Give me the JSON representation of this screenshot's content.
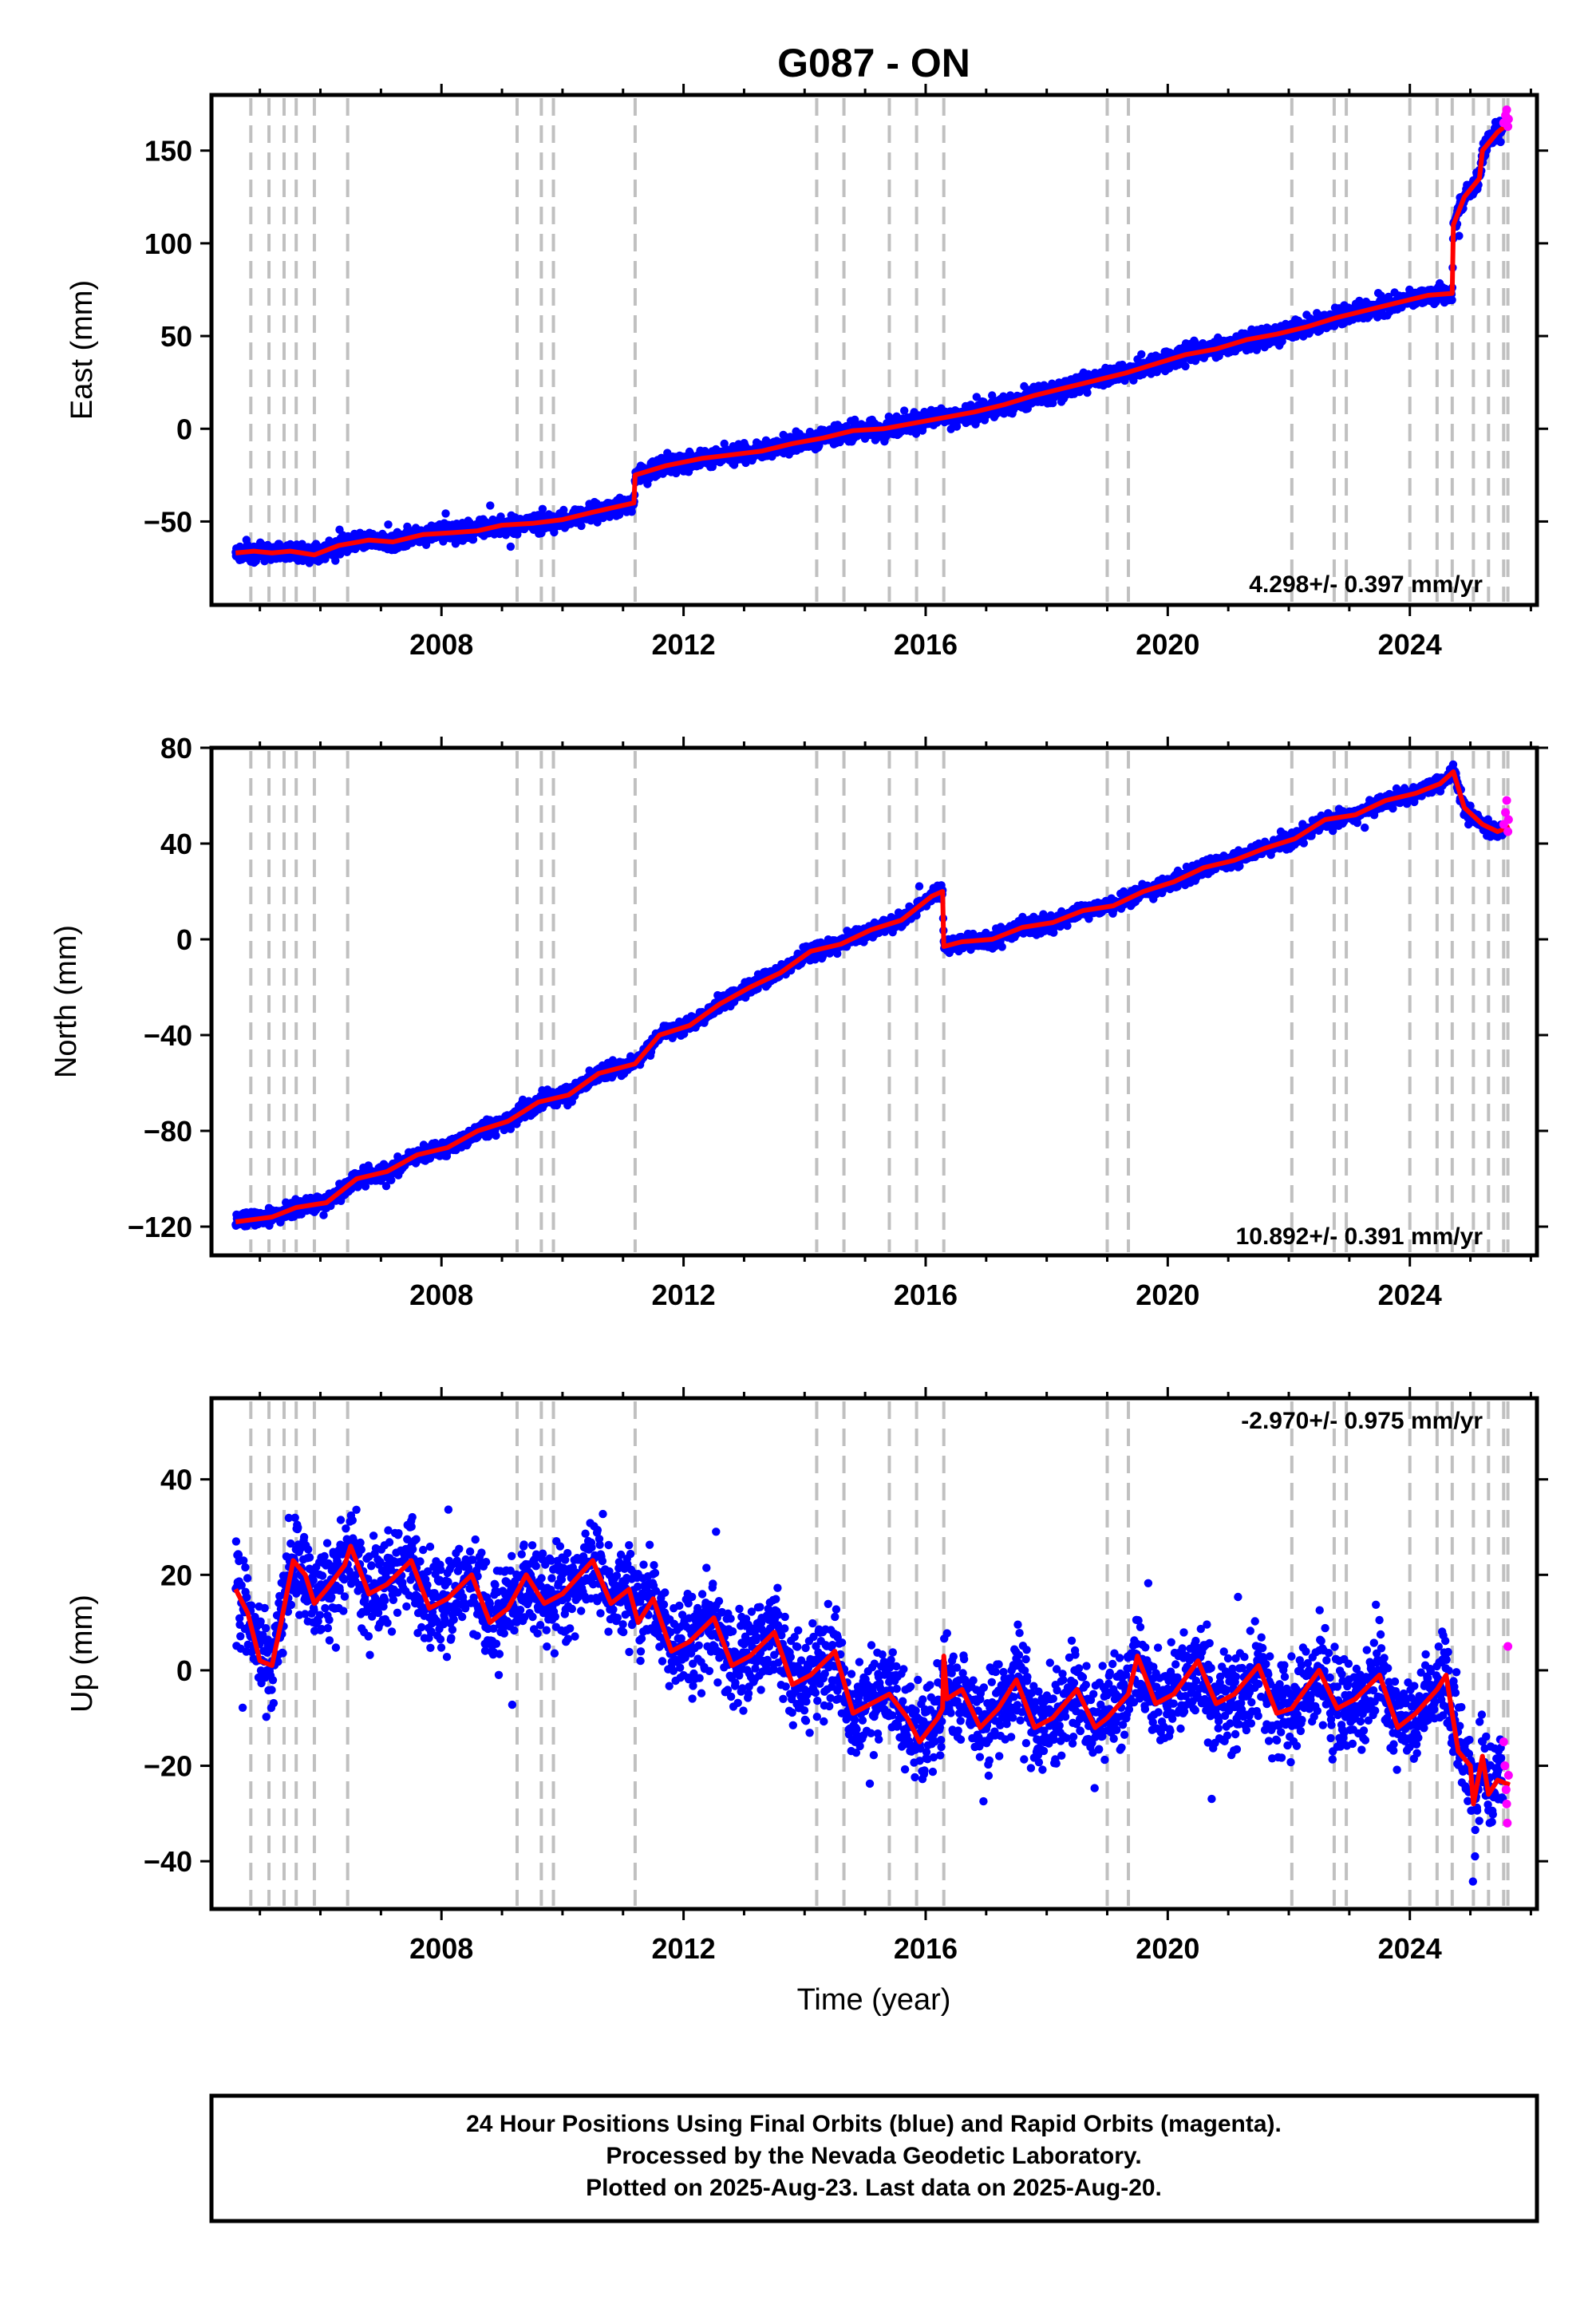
{
  "title": "G087 - ON",
  "xlabel": "Time (year)",
  "footer": {
    "line1": "24 Hour Positions Using Final Orbits (blue) and Rapid Orbits (magenta).",
    "line2": "Processed by the Nevada Geodetic Laboratory.",
    "line3": "Plotted on 2025-Aug-23. Last data on 2025-Aug-20."
  },
  "colors": {
    "final": "#0000ff",
    "rapid": "#ff00ff",
    "model": "#ff0000",
    "steps": "#c0c0c0"
  },
  "chart_data": [
    {
      "type": "scatter",
      "name": "east",
      "ylabel": "East (mm)",
      "rate_label": "4.298+/- 0.397 mm/yr",
      "xlim": [
        2004.2,
        2026.1
      ],
      "ylim": [
        -95,
        180
      ],
      "xticks": [
        2008,
        2012,
        2016,
        2020,
        2024
      ],
      "yticks": [
        -50,
        0,
        50,
        100,
        150
      ],
      "ytick_labels": [
        "−50",
        "0",
        "50",
        "100",
        "150"
      ],
      "steps": [
        2004.85,
        2005.15,
        2005.4,
        2005.6,
        2005.9,
        2006.45,
        2009.25,
        2009.65,
        2009.85,
        2011.2,
        2014.2,
        2014.65,
        2015.4,
        2015.85,
        2016.3,
        2019.0,
        2019.35,
        2022.05,
        2022.75,
        2022.95,
        2024.0,
        2024.45,
        2024.7,
        2025.05,
        2025.3,
        2025.55,
        2025.62
      ],
      "model": [
        [
          2004.6,
          -67
        ],
        [
          2004.9,
          -66
        ],
        [
          2005.2,
          -67
        ],
        [
          2005.5,
          -66
        ],
        [
          2005.9,
          -68
        ],
        [
          2006.3,
          -63
        ],
        [
          2006.8,
          -60
        ],
        [
          2007.2,
          -61
        ],
        [
          2007.7,
          -57
        ],
        [
          2008.2,
          -56
        ],
        [
          2008.6,
          -55
        ],
        [
          2009.0,
          -52
        ],
        [
          2009.5,
          -51
        ],
        [
          2010.0,
          -49
        ],
        [
          2010.5,
          -45
        ],
        [
          2011.18,
          -40
        ],
        [
          2011.2,
          -25
        ],
        [
          2011.7,
          -20
        ],
        [
          2012.3,
          -16
        ],
        [
          2012.8,
          -14
        ],
        [
          2013.3,
          -12
        ],
        [
          2013.8,
          -8
        ],
        [
          2014.3,
          -5
        ],
        [
          2014.8,
          -1
        ],
        [
          2015.3,
          0
        ],
        [
          2015.8,
          3
        ],
        [
          2016.3,
          6
        ],
        [
          2016.8,
          9
        ],
        [
          2017.3,
          13
        ],
        [
          2017.8,
          18
        ],
        [
          2018.3,
          22
        ],
        [
          2018.8,
          26
        ],
        [
          2019.3,
          30
        ],
        [
          2019.8,
          35
        ],
        [
          2020.3,
          40
        ],
        [
          2020.8,
          43
        ],
        [
          2021.3,
          48
        ],
        [
          2021.8,
          51
        ],
        [
          2022.3,
          55
        ],
        [
          2022.8,
          60
        ],
        [
          2023.3,
          64
        ],
        [
          2023.8,
          68
        ],
        [
          2024.3,
          72
        ],
        [
          2024.7,
          73
        ],
        [
          2024.72,
          110
        ],
        [
          2024.9,
          125
        ],
        [
          2025.15,
          135
        ],
        [
          2025.2,
          150
        ],
        [
          2025.45,
          160
        ],
        [
          2025.65,
          165
        ]
      ],
      "noise": 3.5,
      "rapid": [
        [
          2025.55,
          165
        ],
        [
          2025.58,
          169
        ],
        [
          2025.6,
          172
        ],
        [
          2025.62,
          163
        ],
        [
          2025.63,
          167
        ]
      ]
    },
    {
      "type": "scatter",
      "name": "north",
      "ylabel": "North (mm)",
      "rate_label": "10.892+/- 0.391 mm/yr",
      "xlim": [
        2004.2,
        2026.1
      ],
      "ylim": [
        -132,
        80
      ],
      "xticks": [
        2008,
        2012,
        2016,
        2020,
        2024
      ],
      "yticks": [
        -120,
        -80,
        -40,
        0,
        40,
        80
      ],
      "ytick_labels": [
        "−120",
        "−80",
        "−40",
        "0",
        "40",
        "80"
      ],
      "steps": [
        2004.85,
        2005.15,
        2005.4,
        2005.6,
        2005.9,
        2006.45,
        2009.25,
        2009.65,
        2009.85,
        2011.2,
        2014.2,
        2014.65,
        2015.4,
        2015.85,
        2016.3,
        2019.0,
        2019.35,
        2022.05,
        2022.75,
        2022.95,
        2024.0,
        2024.45,
        2024.7,
        2025.05,
        2025.3,
        2025.55,
        2025.62
      ],
      "model": [
        [
          2004.6,
          -118
        ],
        [
          2005.2,
          -116
        ],
        [
          2005.6,
          -112
        ],
        [
          2006.1,
          -110
        ],
        [
          2006.6,
          -100
        ],
        [
          2007.1,
          -97
        ],
        [
          2007.6,
          -90
        ],
        [
          2008.1,
          -87
        ],
        [
          2008.6,
          -80
        ],
        [
          2009.1,
          -76
        ],
        [
          2009.6,
          -68
        ],
        [
          2010.1,
          -65
        ],
        [
          2010.6,
          -56
        ],
        [
          2011.2,
          -52
        ],
        [
          2011.6,
          -40
        ],
        [
          2012.1,
          -36
        ],
        [
          2012.6,
          -27
        ],
        [
          2013.1,
          -20
        ],
        [
          2013.6,
          -14
        ],
        [
          2014.1,
          -5
        ],
        [
          2014.6,
          -2
        ],
        [
          2015.1,
          4
        ],
        [
          2015.6,
          8
        ],
        [
          2016.1,
          18
        ],
        [
          2016.28,
          20
        ],
        [
          2016.3,
          -3
        ],
        [
          2016.6,
          -1
        ],
        [
          2017.1,
          0
        ],
        [
          2017.6,
          5
        ],
        [
          2018.1,
          7
        ],
        [
          2018.6,
          12
        ],
        [
          2019.1,
          14
        ],
        [
          2019.6,
          20
        ],
        [
          2020.1,
          24
        ],
        [
          2020.6,
          30
        ],
        [
          2021.1,
          33
        ],
        [
          2021.6,
          38
        ],
        [
          2022.1,
          42
        ],
        [
          2022.6,
          50
        ],
        [
          2023.1,
          52
        ],
        [
          2023.6,
          58
        ],
        [
          2024.1,
          61
        ],
        [
          2024.5,
          65
        ],
        [
          2024.72,
          70
        ],
        [
          2024.9,
          55
        ],
        [
          2025.2,
          48
        ],
        [
          2025.45,
          45
        ],
        [
          2025.65,
          47
        ]
      ],
      "noise": 2.2,
      "rapid": [
        [
          2025.55,
          48
        ],
        [
          2025.58,
          53
        ],
        [
          2025.6,
          58
        ],
        [
          2025.62,
          45
        ],
        [
          2025.63,
          50
        ]
      ]
    },
    {
      "type": "scatter",
      "name": "up",
      "ylabel": "Up (mm)",
      "rate_label": "-2.970+/- 0.975 mm/yr",
      "xlim": [
        2004.2,
        2026.1
      ],
      "ylim": [
        -50,
        57
      ],
      "xticks": [
        2008,
        2012,
        2016,
        2020,
        2024
      ],
      "yticks": [
        -40,
        -20,
        0,
        20,
        40
      ],
      "ytick_labels": [
        "−40",
        "−20",
        "0",
        "20",
        "40"
      ],
      "steps": [
        2004.85,
        2005.15,
        2005.4,
        2005.6,
        2005.9,
        2006.45,
        2009.25,
        2009.65,
        2009.85,
        2011.2,
        2014.2,
        2014.65,
        2015.4,
        2015.85,
        2016.3,
        2019.0,
        2019.35,
        2022.05,
        2022.75,
        2022.95,
        2024.0,
        2024.45,
        2024.7,
        2025.05,
        2025.3,
        2025.55,
        2025.62
      ],
      "model": [
        [
          2004.6,
          17
        ],
        [
          2004.8,
          12
        ],
        [
          2005.0,
          2
        ],
        [
          2005.2,
          1
        ],
        [
          2005.35,
          10
        ],
        [
          2005.55,
          23
        ],
        [
          2005.75,
          20
        ],
        [
          2005.9,
          14
        ],
        [
          2006.1,
          17
        ],
        [
          2006.4,
          22
        ],
        [
          2006.5,
          26
        ],
        [
          2006.8,
          16
        ],
        [
          2007.1,
          18
        ],
        [
          2007.5,
          23
        ],
        [
          2007.8,
          13
        ],
        [
          2008.1,
          15
        ],
        [
          2008.5,
          20
        ],
        [
          2008.8,
          10
        ],
        [
          2009.1,
          13
        ],
        [
          2009.4,
          20
        ],
        [
          2009.7,
          14
        ],
        [
          2010.0,
          16
        ],
        [
          2010.5,
          23
        ],
        [
          2010.8,
          14
        ],
        [
          2011.1,
          17
        ],
        [
          2011.25,
          10
        ],
        [
          2011.5,
          15
        ],
        [
          2011.8,
          4
        ],
        [
          2012.1,
          6
        ],
        [
          2012.5,
          11
        ],
        [
          2012.8,
          1
        ],
        [
          2013.1,
          3
        ],
        [
          2013.5,
          8
        ],
        [
          2013.8,
          -3
        ],
        [
          2014.1,
          -1
        ],
        [
          2014.5,
          4
        ],
        [
          2014.8,
          -9
        ],
        [
          2015.1,
          -7
        ],
        [
          2015.4,
          -5
        ],
        [
          2015.7,
          -10
        ],
        [
          2015.9,
          -15
        ],
        [
          2016.2,
          -10
        ],
        [
          2016.28,
          -8
        ],
        [
          2016.3,
          3
        ],
        [
          2016.35,
          -6
        ],
        [
          2016.6,
          -4
        ],
        [
          2016.9,
          -12
        ],
        [
          2017.2,
          -8
        ],
        [
          2017.5,
          -2
        ],
        [
          2017.8,
          -12
        ],
        [
          2018.1,
          -10
        ],
        [
          2018.5,
          -4
        ],
        [
          2018.8,
          -12
        ],
        [
          2019.0,
          -10
        ],
        [
          2019.35,
          -5
        ],
        [
          2019.5,
          3
        ],
        [
          2019.8,
          -7
        ],
        [
          2020.1,
          -5
        ],
        [
          2020.5,
          2
        ],
        [
          2020.8,
          -7
        ],
        [
          2021.1,
          -5
        ],
        [
          2021.5,
          1
        ],
        [
          2021.8,
          -9
        ],
        [
          2022.05,
          -8
        ],
        [
          2022.5,
          0
        ],
        [
          2022.8,
          -8
        ],
        [
          2023.1,
          -6
        ],
        [
          2023.5,
          -1
        ],
        [
          2023.8,
          -12
        ],
        [
          2024.1,
          -9
        ],
        [
          2024.45,
          -4
        ],
        [
          2024.6,
          -1
        ],
        [
          2024.8,
          -17
        ],
        [
          2025.0,
          -20
        ],
        [
          2025.05,
          -28
        ],
        [
          2025.2,
          -18
        ],
        [
          2025.3,
          -26
        ],
        [
          2025.45,
          -23
        ],
        [
          2025.65,
          -24
        ]
      ],
      "noise": 7.0,
      "rapid": [
        [
          2025.55,
          -15
        ],
        [
          2025.57,
          -20
        ],
        [
          2025.59,
          -25
        ],
        [
          2025.6,
          -28
        ],
        [
          2025.61,
          -32
        ],
        [
          2025.62,
          5
        ],
        [
          2025.63,
          -22
        ]
      ]
    }
  ]
}
